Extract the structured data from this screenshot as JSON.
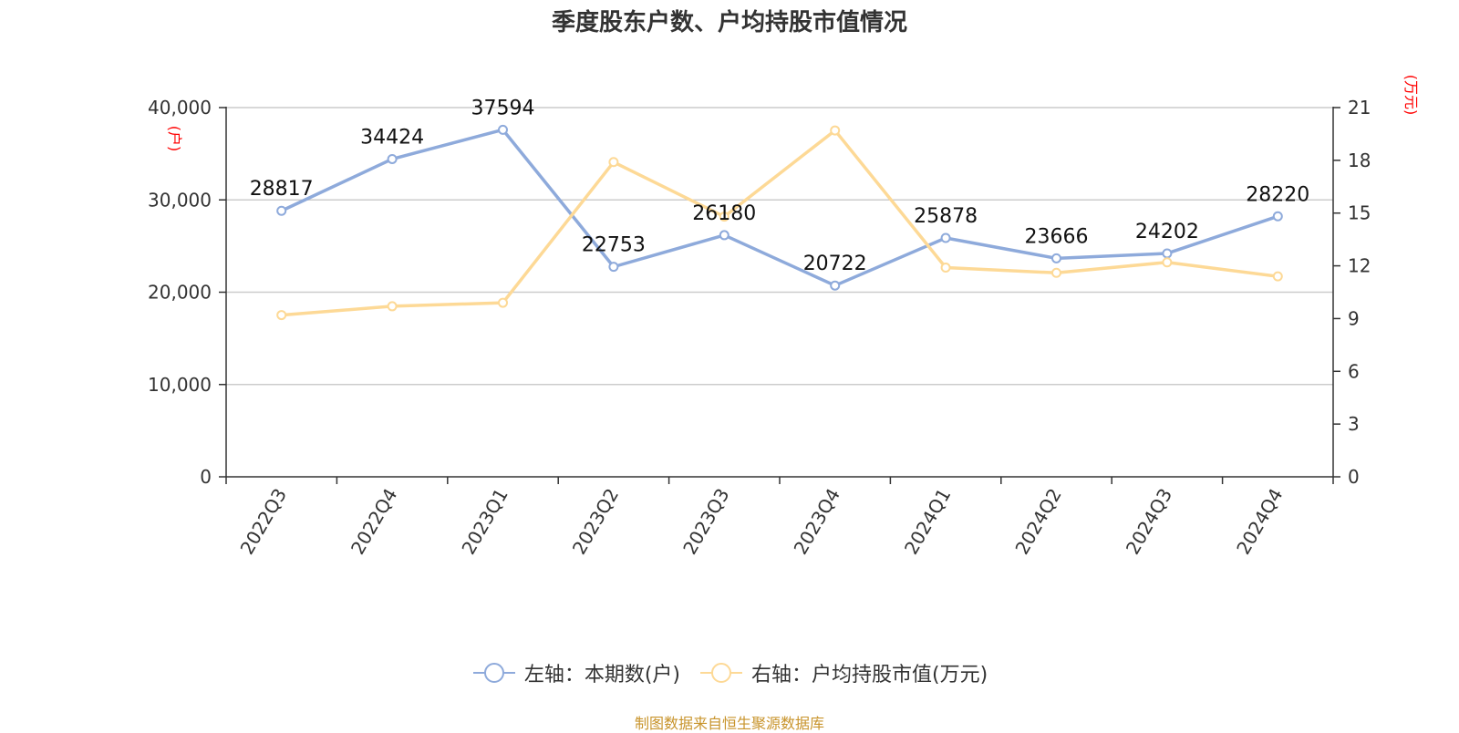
{
  "chart_data": {
    "type": "line",
    "title": "季度股东户数、户均持股市值情况",
    "categories": [
      "2022Q3",
      "2022Q4",
      "2023Q1",
      "2023Q2",
      "2023Q3",
      "2023Q4",
      "2024Q1",
      "2024Q2",
      "2024Q3",
      "2024Q4"
    ],
    "series": [
      {
        "name": "左轴：本期数(户)",
        "axis": "left",
        "color": "#8eaadb",
        "values": [
          28817,
          34424,
          37594,
          22753,
          26180,
          20722,
          25878,
          23666,
          24202,
          28220
        ],
        "data_labels": [
          "28817",
          "34424",
          "37594",
          "22753",
          "26180",
          "20722",
          "25878",
          "23666",
          "24202",
          "28220"
        ]
      },
      {
        "name": "右轴：户均持股市值(万元)",
        "axis": "right",
        "color": "#fdd996",
        "values": [
          9.2,
          9.7,
          9.9,
          17.9,
          14.8,
          19.7,
          11.9,
          11.6,
          12.2,
          11.4
        ]
      }
    ],
    "left_axis": {
      "unit_label": "(户)",
      "ylim": [
        0,
        40000
      ],
      "ticks": [
        0,
        10000,
        20000,
        30000,
        40000
      ],
      "tick_labels": [
        "0",
        "10,000",
        "20,000",
        "30,000",
        "40,000"
      ]
    },
    "right_axis": {
      "unit_label": "(万元)",
      "ylim": [
        0,
        21
      ],
      "ticks": [
        0,
        3,
        6,
        9,
        12,
        15,
        18,
        21
      ],
      "tick_labels": [
        "0",
        "3",
        "6",
        "9",
        "12",
        "15",
        "18",
        "21"
      ]
    },
    "grid": true,
    "legend_position": "bottom-center",
    "source": "制图数据来自恒生聚源数据库"
  }
}
